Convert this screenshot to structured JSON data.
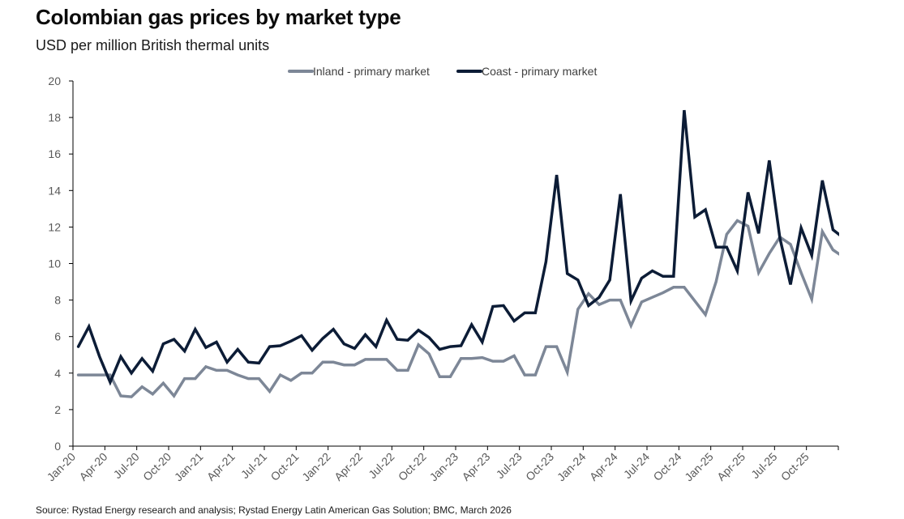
{
  "header": {
    "title": "Colombian gas prices by market type",
    "subtitle": "USD per million British thermal units"
  },
  "footer": {
    "source": "Source: Rystad Energy research and analysis; Rystad Energy Latin American Gas Solution; BMC, March 2026"
  },
  "colors": {
    "inland": "#7d8797",
    "coast": "#0c1c36",
    "axis": "#000000",
    "tick_text": "#595959"
  },
  "chart_data": {
    "type": "line",
    "title": "Colombian gas prices by market type",
    "subtitle": "USD per million British thermal units",
    "xlabel": "",
    "ylabel": "",
    "ylim": [
      0,
      20
    ],
    "yticks": [
      "0",
      "2",
      "4",
      "6",
      "8",
      "10",
      "12",
      "14",
      "16",
      "18",
      "20"
    ],
    "ytick_values": [
      0,
      2,
      4,
      6,
      8,
      10,
      12,
      14,
      16,
      18,
      20
    ],
    "grid": false,
    "legend_position": "top-center",
    "x_start": "Jan-20",
    "x_frequency": "monthly",
    "x_count": 72,
    "xtick_labels": [
      "Jan-20",
      "Apr-20",
      "Jul-20",
      "Oct-20",
      "Jan-21",
      "Apr-21",
      "Jul-21",
      "Oct-21",
      "Jan-22",
      "Apr-22",
      "Jul-22",
      "Oct-22",
      "Jan-23",
      "Apr-23",
      "Jul-23",
      "Oct-23",
      "Jan-24",
      "Apr-24",
      "Jul-24",
      "Oct-24",
      "Jan-25",
      "Apr-25",
      "Jul-25",
      "Oct-25"
    ],
    "series": [
      {
        "name": "Inland - primary market",
        "key": "inland",
        "values": [
          3.9,
          3.9,
          3.9,
          3.9,
          2.75,
          2.7,
          3.25,
          2.85,
          3.45,
          2.75,
          3.7,
          3.7,
          4.35,
          4.15,
          4.15,
          3.9,
          3.7,
          3.7,
          3.0,
          3.9,
          3.6,
          4.0,
          4.0,
          4.6,
          4.6,
          4.45,
          4.45,
          4.75,
          4.75,
          4.75,
          4.15,
          4.15,
          5.55,
          5.05,
          3.8,
          3.8,
          4.8,
          4.8,
          4.85,
          4.65,
          4.65,
          4.95,
          3.9,
          3.9,
          5.45,
          5.45,
          4.05,
          7.5,
          8.35,
          7.75,
          8.0,
          8.0,
          6.6,
          7.9,
          8.15,
          8.4,
          8.7,
          8.7,
          7.95,
          7.2,
          9.0,
          11.6,
          12.35,
          12.05,
          9.5,
          10.55,
          11.45,
          11.05,
          9.5,
          8.05,
          11.75,
          10.75
        ]
      },
      {
        "name": "Coast - primary market",
        "key": "coast",
        "values": [
          5.45,
          6.55,
          4.9,
          3.5,
          4.9,
          4.0,
          4.8,
          4.1,
          5.6,
          5.85,
          5.2,
          6.4,
          5.4,
          5.7,
          4.6,
          5.3,
          4.6,
          4.55,
          5.45,
          5.5,
          5.75,
          6.05,
          5.25,
          5.9,
          6.4,
          5.6,
          5.35,
          6.1,
          5.45,
          6.9,
          5.85,
          5.8,
          6.35,
          5.95,
          5.3,
          5.45,
          5.5,
          6.65,
          5.7,
          7.65,
          7.7,
          6.85,
          7.3,
          7.3,
          10.1,
          14.85,
          9.45,
          9.1,
          7.7,
          8.15,
          9.1,
          13.8,
          7.95,
          9.2,
          9.6,
          9.3,
          9.3,
          18.4,
          12.55,
          12.95,
          10.9,
          10.9,
          9.6,
          13.9,
          11.65,
          15.65,
          11.4,
          8.85,
          11.95,
          10.45,
          14.55,
          11.85
        ]
      }
    ],
    "trailing_values": {
      "inland": 10.35,
      "coast": 11.4
    }
  }
}
